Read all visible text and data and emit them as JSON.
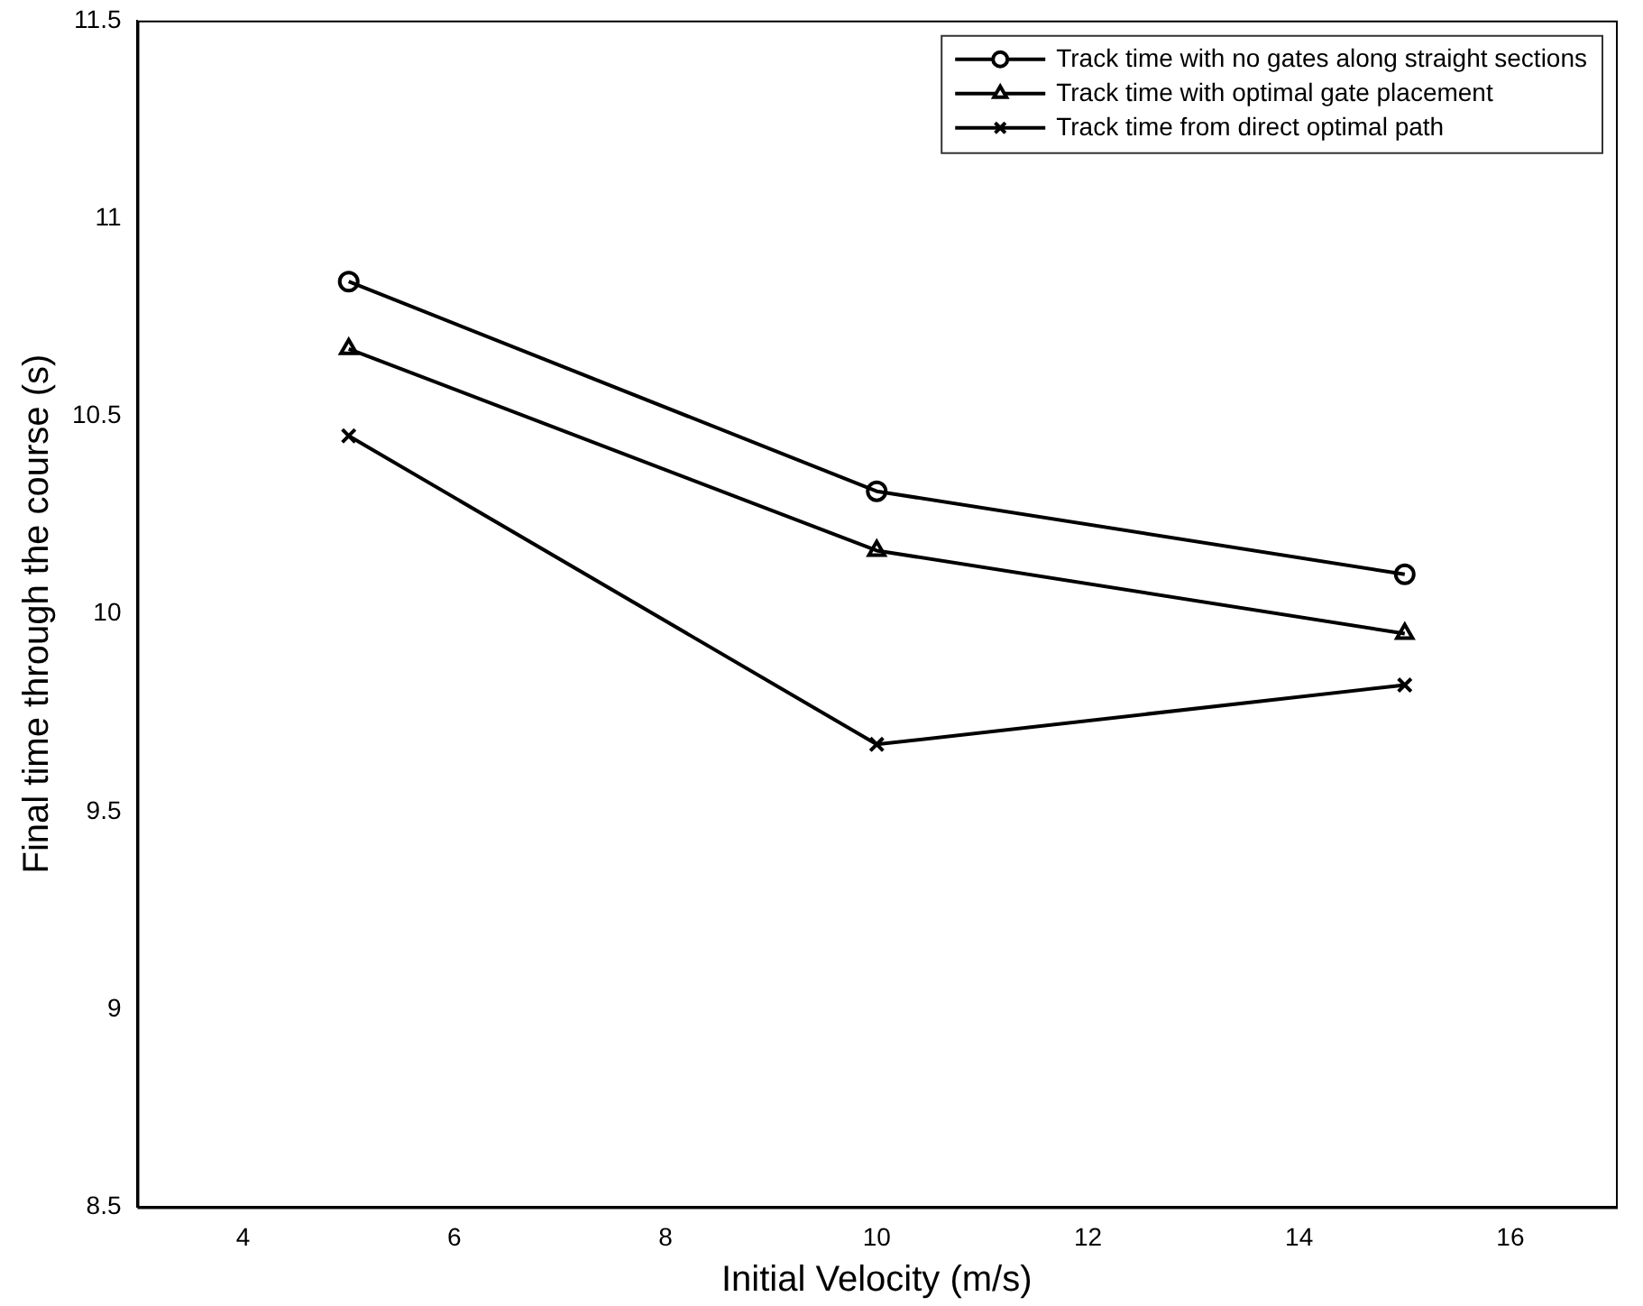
{
  "chart_data": {
    "type": "line",
    "xlabel": "Initial Velocity (m/s)",
    "ylabel": "Final time through the course (s)",
    "x": [
      5,
      10,
      15
    ],
    "series": [
      {
        "name": "Track time with no gates along straight sections",
        "color": "#000000",
        "marker": "circle",
        "values": [
          10.84,
          10.31,
          10.1
        ]
      },
      {
        "name": "Track time with optimal gate placement",
        "color": "#000000",
        "marker": "triangle",
        "values": [
          10.67,
          10.16,
          9.95
        ]
      },
      {
        "name": "Track time from direct optimal path",
        "color": "#000000",
        "marker": "cross",
        "values": [
          10.45,
          9.67,
          9.82
        ]
      }
    ],
    "xlim": [
      3,
      17
    ],
    "xticks": [
      4,
      6,
      8,
      10,
      12,
      14,
      16
    ],
    "ylim": [
      8.5,
      11.5
    ],
    "yticks": [
      8.5,
      9,
      9.5,
      10,
      10.5,
      11,
      11.5
    ],
    "legend": "top right"
  }
}
